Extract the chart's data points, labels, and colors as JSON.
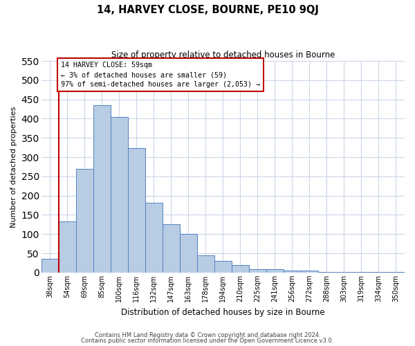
{
  "title": "14, HARVEY CLOSE, BOURNE, PE10 9QJ",
  "subtitle": "Size of property relative to detached houses in Bourne",
  "xlabel": "Distribution of detached houses by size in Bourne",
  "ylabel": "Number of detached properties",
  "bar_labels": [
    "38sqm",
    "54sqm",
    "69sqm",
    "85sqm",
    "100sqm",
    "116sqm",
    "132sqm",
    "147sqm",
    "163sqm",
    "178sqm",
    "194sqm",
    "210sqm",
    "225sqm",
    "241sqm",
    "256sqm",
    "272sqm",
    "288sqm",
    "303sqm",
    "319sqm",
    "334sqm",
    "350sqm"
  ],
  "bar_values": [
    35,
    133,
    270,
    435,
    405,
    323,
    182,
    125,
    100,
    45,
    30,
    20,
    8,
    8,
    5,
    5,
    2,
    2,
    2,
    2,
    2
  ],
  "bar_color": "#b8cce4",
  "bar_edge_color": "#5080c0",
  "vline_color": "#c00000",
  "annotation_text": "14 HARVEY CLOSE: 59sqm\n← 3% of detached houses are smaller (59)\n97% of semi-detached houses are larger (2,053) →",
  "annotation_box_color": "#ffffff",
  "annotation_box_edge_color": "#c00000",
  "ylim": [
    0,
    550
  ],
  "yticks": [
    0,
    50,
    100,
    150,
    200,
    250,
    300,
    350,
    400,
    450,
    500,
    550
  ],
  "footer1": "Contains HM Land Registry data © Crown copyright and database right 2024.",
  "footer2": "Contains public sector information licensed under the Open Government Licence v3.0.",
  "bg_color": "#ffffff",
  "grid_color": "#ccd6e8"
}
